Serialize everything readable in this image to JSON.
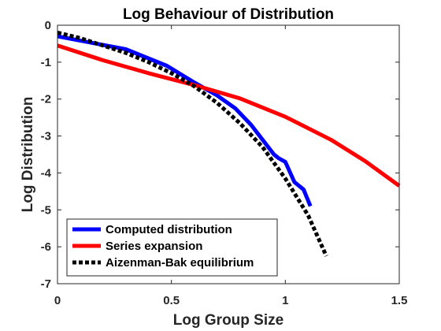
{
  "chart_data": {
    "type": "line",
    "title": "Log Behaviour of Distribution",
    "xlabel": "Log Group Size",
    "ylabel": "Log Distribution",
    "xlim": [
      0,
      1.5
    ],
    "ylim": [
      -7,
      0
    ],
    "xticks": [
      0,
      0.5,
      1,
      1.5
    ],
    "xtick_labels": [
      "0",
      "0.5",
      "1",
      "1.5"
    ],
    "yticks": [
      0,
      -1,
      -2,
      -3,
      -4,
      -5,
      -6,
      -7
    ],
    "ytick_labels": [
      "0",
      "-1",
      "-2",
      "-3",
      "-4",
      "-5",
      "-6",
      "-7"
    ],
    "grid": false,
    "legend_position": "bottom-left",
    "series": [
      {
        "name": "Computed distribution",
        "color": "#0000ff",
        "style": "solid",
        "x": [
          0,
          0.3,
          0.48,
          0.6,
          0.7,
          0.78,
          0.85,
          0.9,
          0.95,
          0.97,
          1.0,
          1.04,
          1.08,
          1.11
        ],
        "y": [
          -0.3,
          -0.65,
          -1.1,
          -1.55,
          -1.9,
          -2.25,
          -2.7,
          -3.1,
          -3.5,
          -3.6,
          -3.7,
          -4.25,
          -4.45,
          -4.9
        ]
      },
      {
        "name": "Series expansion",
        "color": "#ff0000",
        "style": "solid",
        "x": [
          0,
          0.2,
          0.4,
          0.6,
          0.8,
          1.0,
          1.2,
          1.35,
          1.5
        ],
        "y": [
          -0.55,
          -0.95,
          -1.3,
          -1.62,
          -1.98,
          -2.48,
          -3.1,
          -3.68,
          -4.35
        ]
      },
      {
        "name": "Aizenman-Bak equilibrium",
        "color": "#000000",
        "style": "dotted",
        "x": [
          0,
          0.1,
          0.2,
          0.3,
          0.4,
          0.5,
          0.6,
          0.7,
          0.8,
          0.9,
          1.0,
          1.1,
          1.18
        ],
        "y": [
          -0.2,
          -0.35,
          -0.55,
          -0.75,
          -1.0,
          -1.3,
          -1.65,
          -2.1,
          -2.65,
          -3.3,
          -4.15,
          -5.15,
          -6.25
        ]
      }
    ]
  }
}
